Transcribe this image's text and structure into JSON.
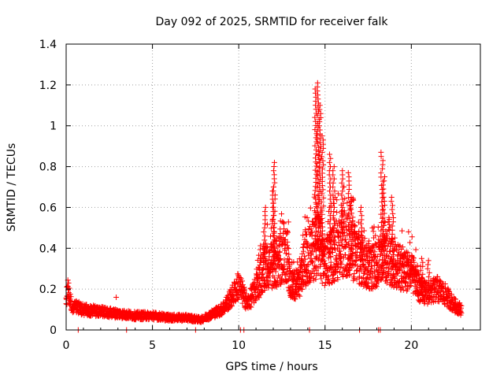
{
  "chart_data": {
    "type": "scatter",
    "title": "Day 092 of 2025, SRMTID for receiver falk",
    "xlabel": "GPS time / hours",
    "ylabel": "SRMTID / TECUs",
    "xlim": [
      0,
      24
    ],
    "ylim": [
      0,
      1.4
    ],
    "xticks": [
      "0",
      "5",
      "10",
      "15",
      "20"
    ],
    "yticks": [
      "0",
      "0.2",
      "0.4",
      "0.6",
      "0.8",
      "1",
      "1.2",
      "1.4"
    ],
    "grid": true,
    "marker": "+",
    "color": "#ff0000",
    "series": [
      {
        "name": "SRMTID",
        "profile": [
          [
            0.0,
            0.14
          ],
          [
            0.1,
            0.2
          ],
          [
            0.3,
            0.12
          ],
          [
            1.0,
            0.1
          ],
          [
            2.0,
            0.09
          ],
          [
            3.0,
            0.08
          ],
          [
            4.0,
            0.07
          ],
          [
            5.0,
            0.07
          ],
          [
            6.0,
            0.06
          ],
          [
            7.0,
            0.06
          ],
          [
            7.8,
            0.05
          ],
          [
            8.5,
            0.08
          ],
          [
            9.0,
            0.1
          ],
          [
            9.5,
            0.15
          ],
          [
            10.0,
            0.22
          ],
          [
            10.5,
            0.13
          ],
          [
            11.0,
            0.2
          ],
          [
            11.5,
            0.3
          ],
          [
            12.0,
            0.32
          ],
          [
            12.5,
            0.35
          ],
          [
            12.8,
            0.38
          ],
          [
            13.0,
            0.22
          ],
          [
            13.5,
            0.22
          ],
          [
            13.8,
            0.33
          ],
          [
            14.2,
            0.38
          ],
          [
            14.6,
            0.42
          ],
          [
            15.0,
            0.33
          ],
          [
            15.5,
            0.38
          ],
          [
            16.0,
            0.42
          ],
          [
            16.5,
            0.4
          ],
          [
            17.0,
            0.35
          ],
          [
            17.5,
            0.3
          ],
          [
            18.0,
            0.32
          ],
          [
            18.5,
            0.36
          ],
          [
            19.0,
            0.32
          ],
          [
            19.5,
            0.3
          ],
          [
            20.0,
            0.28
          ],
          [
            20.5,
            0.2
          ],
          [
            21.0,
            0.18
          ],
          [
            21.5,
            0.2
          ],
          [
            22.0,
            0.17
          ],
          [
            22.5,
            0.12
          ],
          [
            22.9,
            0.1
          ]
        ],
        "bursts": [
          [
            12.05,
            0.82
          ],
          [
            12.0,
            0.7
          ],
          [
            11.5,
            0.6
          ],
          [
            14.6,
            1.21
          ],
          [
            14.45,
            1.18
          ],
          [
            14.7,
            1.1
          ],
          [
            14.85,
            0.95
          ],
          [
            15.3,
            0.86
          ],
          [
            15.5,
            0.8
          ],
          [
            16.0,
            0.78
          ],
          [
            16.4,
            0.77
          ],
          [
            16.55,
            0.65
          ],
          [
            17.1,
            0.6
          ],
          [
            18.3,
            0.87
          ],
          [
            18.4,
            0.75
          ],
          [
            18.9,
            0.65
          ],
          [
            20.6,
            0.35
          ],
          [
            21.0,
            0.34
          ]
        ],
        "outliers": [
          [
            0.7,
            0.0
          ],
          [
            2.9,
            0.16
          ],
          [
            3.5,
            0.0
          ],
          [
            7.5,
            0.0
          ],
          [
            10.1,
            0.0
          ],
          [
            10.3,
            0.0
          ],
          [
            14.1,
            0.0
          ],
          [
            17.0,
            0.0
          ],
          [
            18.1,
            0.0
          ],
          [
            18.2,
            0.0
          ]
        ]
      }
    ]
  }
}
